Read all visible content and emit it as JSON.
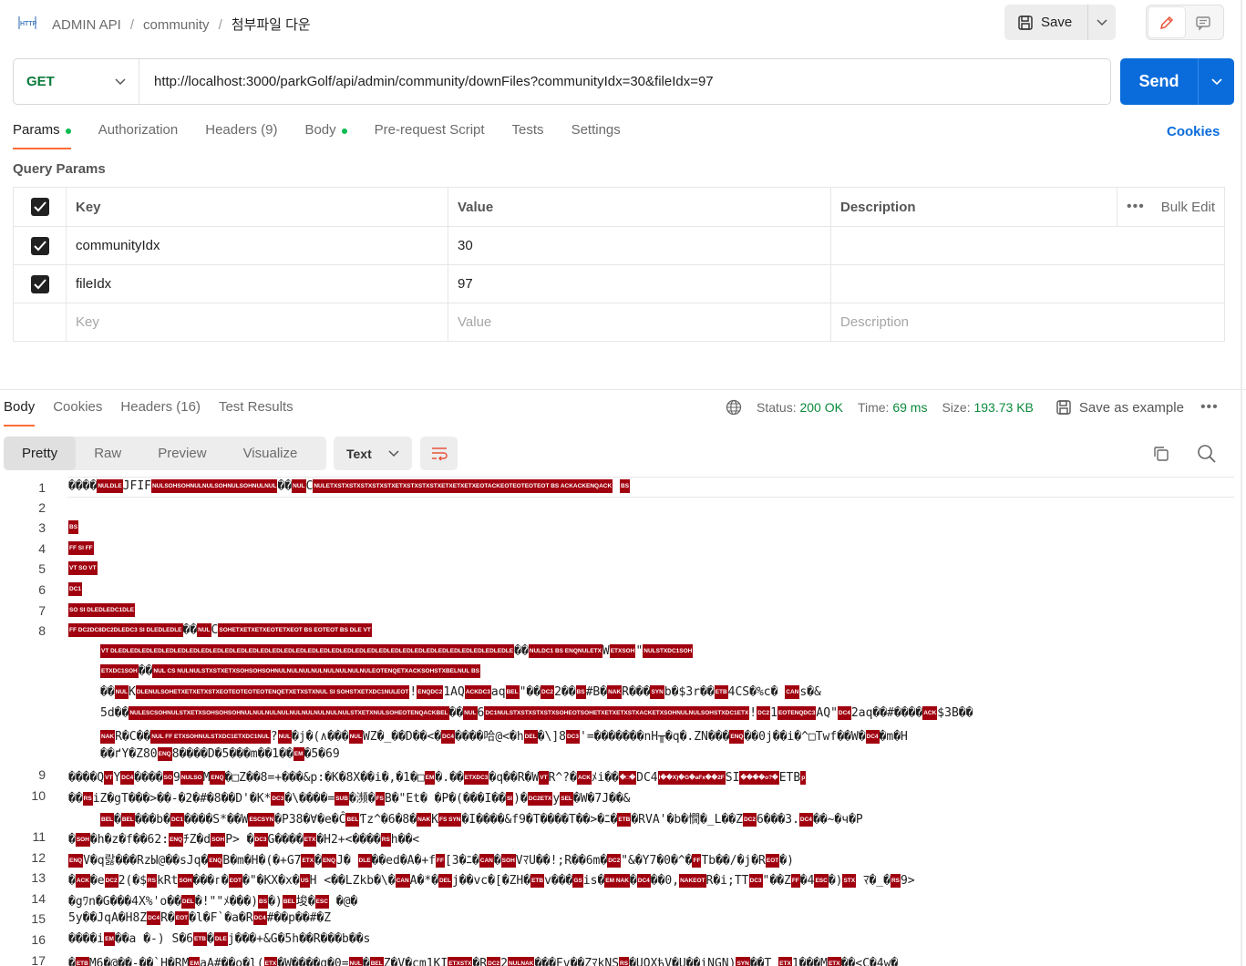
{
  "breadcrumb": {
    "collection": "ADMIN API",
    "folder": "community",
    "request": "첨부파일 다운"
  },
  "toolbar": {
    "save_label": "Save"
  },
  "request": {
    "method": "GET",
    "url": "http://localhost:3000/parkGolf/api/admin/community/downFiles?communityIdx=30&fileIdx=97",
    "send_label": "Send"
  },
  "request_tabs": [
    "Params",
    "Authorization",
    "Headers (9)",
    "Body",
    "Pre-request Script",
    "Tests",
    "Settings"
  ],
  "cookies_label": "Cookies",
  "query_params": {
    "title": "Query Params",
    "headers": {
      "key": "Key",
      "value": "Value",
      "description": "Description",
      "bulk_edit": "Bulk Edit"
    },
    "rows": [
      {
        "key": "communityIdx",
        "value": "30",
        "description": ""
      },
      {
        "key": "fileIdx",
        "value": "97",
        "description": ""
      }
    ],
    "placeholders": {
      "key": "Key",
      "value": "Value",
      "description": "Description"
    }
  },
  "response_tabs": [
    "Body",
    "Cookies",
    "Headers (16)",
    "Test Results"
  ],
  "response_meta": {
    "status_label": "Status:",
    "status": "200 OK",
    "time_label": "Time:",
    "time": "69 ms",
    "size_label": "Size:",
    "size": "193.73 KB",
    "save_example": "Save as example"
  },
  "view_modes": [
    "Pretty",
    "Raw",
    "Preview",
    "Visualize"
  ],
  "format": "Text",
  "code_lines": [
    {
      "n": "1",
      "t": "����|NULDLE|JFIF|NULSOHSOHNULNULSOHNULSOHNULNUL|��|NUL|C|NULETXSTXSTXSTXSTXSTXETXSTXSTXSTXETXETXETXEOTACKEOTEOTEOTEOT BS ACKACKENQACK|  |BS|"
    },
    {
      "n": "2",
      "t": ""
    },
    {
      "n": "3",
      "t": "     |BS|"
    },
    {
      "n": "4",
      "t": "|FF SI FF|"
    },
    {
      "n": "5",
      "t": "|VT SO VT|"
    },
    {
      "n": "6",
      "t": "|DC1|"
    },
    {
      "n": "7",
      "t": "|SO SI DLEDLEDC1DLE|"
    },
    {
      "n": "8",
      "t": "|FF DC2DC8DC2DLEDC3 SI DLEDLEDLE|��|NUL|C|SOHETXETXETXEOTETXEOT BS EOTEOT BS DLE VT|"
    },
    {
      "n": "",
      "t": "|VT DLEDLEDLEDLEDLEDLEDLEDLEDLEDLEDLEDLEDLEDLEDLEDLEDLEDLEDLEDLEDLEDLEDLEDLEDLEDLEDLEDLEDLEDLEDLEDLEDLEDLE|��|NULDC1 BS ENQNULETX|W|ETXSOH|\"|NULSTXDC1SOH|"
    },
    {
      "n": "",
      "t": "|ETXDC1SOH|��|NUL CS NULNULSTXSTXETXSOHSOHSOHNULNULNULNULNULNULNULNULEOTENQETXACKSOHSTXBELNUL BS|"
    },
    {
      "n": "",
      "t": "��|NUL|K|DLENULSOHETXETXETXSTXEOTEOTEOTEOTENQETXETXSTXNUL SI SOHSTXETXDC1NULEOT|!|ENQDC2|1AQ|ACKDC3|aq|BEL|\"��|DC2|2��|BS|#B�|NAK|R���|SYN|b�$3r��|ETB|4CS�%c�  |CAN|s�&"
    },
    {
      "n": "",
      "t": "5d��|NULESCSOHNULSTXETXSOHSOHSOHNULNULNULNULNULNULNULNULNULSTXETXNULSOHEOTENQACKBEL|��|NUL|6|DC1NULSTXSTXSTXSTXSOHEOTSOHETXETXETXSTXACKETXSOHNULNULSOHSTXDC1ETX|!|DC2|1|EOTENQDC3|AQ\"|DC4|2aq��#����|ACK|$3B��"
    },
    {
      "n": "",
      "t": "|NAK|R�C��|NUL FF ETXSOHNULSTXDC1ETXDC1NUL|?|NUL|�j�(∧���|NUL|WZ�_��D��<�|DC4|����哈@<�h|DEL|�\\]8|DC3|'=�������nH╥�q�.ZN���|ENQ|��0j��i�^□Twf��W�|DC4|�m�H"
    },
    {
      "n": "",
      "t": "��ґY�Z80|ENQ|8����D�5���m��1��|EM|�5�69"
    },
    {
      "n": "9",
      "t": "����Q|VT|Y|DC4|����|SO|9|NULSO|M|ENQ|�□Z��8=+���&p:�K�8X��i�,�1�□|EM|�.��|ETXDC3|�q��R�W|VT|R^?�|ACK|ﾒi��|�□�|DC4|I��X)�G�aFx��2F|SI|����o?�|ETB|p"
    },
    {
      "n": "10",
      "t": "��|RS|iZ�gT���>��-�2�#�8��D'�K*|DC3|�\\����=|SUB|�瀕�|FS|B�\"Et�  �P�(���I��|SI|)�|DC2ETX|y|SEL|�W�7J��&"
    },
    {
      "n": "",
      "t": "|BEL|�|BEL|���b�|DC1|����S*��W|ESCSYN|�P38�∀�e�Ĉ|BEL|Ƭz^�6�8�|NAK|K|FS SYN|�I����&f9�T����T��>�ﾆ�|ETB|�RVA'�b�憪�_L��Z|DC2|6���3.|DC4|��~�ч�P"
    },
    {
      "n": "11",
      "t": "�|SOH|�h�z�f��62:|ENQ|ﾁZ�d|SOH|P>   �|DC3|G����|ETX|�H2+<����|RS|h��<"
    },
    {
      "n": "12",
      "t": "|ENQ|V�q랋���RzЫ@��sJq�|ENQ|B�m�H�(�+G7|ETX|�|ENQ|J� |DLE|��ed�A�+f|FF|[3�ﾆ�|CAN|�|SOH|VﾏU��!;R��6m�|DC2|\"&�Y7�0�^�|FF|Tb��/�j�R|EOT|�)"
    },
    {
      "n": "13",
      "t": "�|ACK|�e|DC2|2(�$|RS|kRt|SOH|���ᴦ�|EOT|�\"�KX�x�|US|H <��LZkb�\\�|CAN|A�*�|DEL|j��vc�[�ZH�|ETB|v���|GS|is�|EM NAK|�|DC4|��0,|NAKEOT|R�i;TT|DC3|\"��Z|FF|�4|ESC|�)|STX| ﾏ�_�|RS|9>"
    },
    {
      "n": "14",
      "t": "�gﾜn�G���4X%'o��|DEL|�!\"\"ﾒ���)|BS|�)|BEL|埈�|ESC|     �@�"
    },
    {
      "n": "15",
      "t": "5y��JqA�Ȟ8Z|DC4|R�|EOT|�l�F`�a�R|DC4|#��p��#�Z"
    },
    {
      "n": "16",
      "t": "����i|EM|��a �-) S�6|ETB|�|DLE|j���+&G�5h��R���b��s"
    },
    {
      "n": "17",
      "t": "�|ETB|M6�@��-��`H�RM|EM|aA#��o�l(|ETX|�W����g�0=|NUL|�|BEL|Z�V�cm1KI|ETXSTX|�R|DC2|2|NULNAK|���Fv��ZﾏkNS|RS|�UOXћV�U��iNGN)|SYN|��T    |ETX|1���M|ETX|��<C�4w�"
    }
  ]
}
